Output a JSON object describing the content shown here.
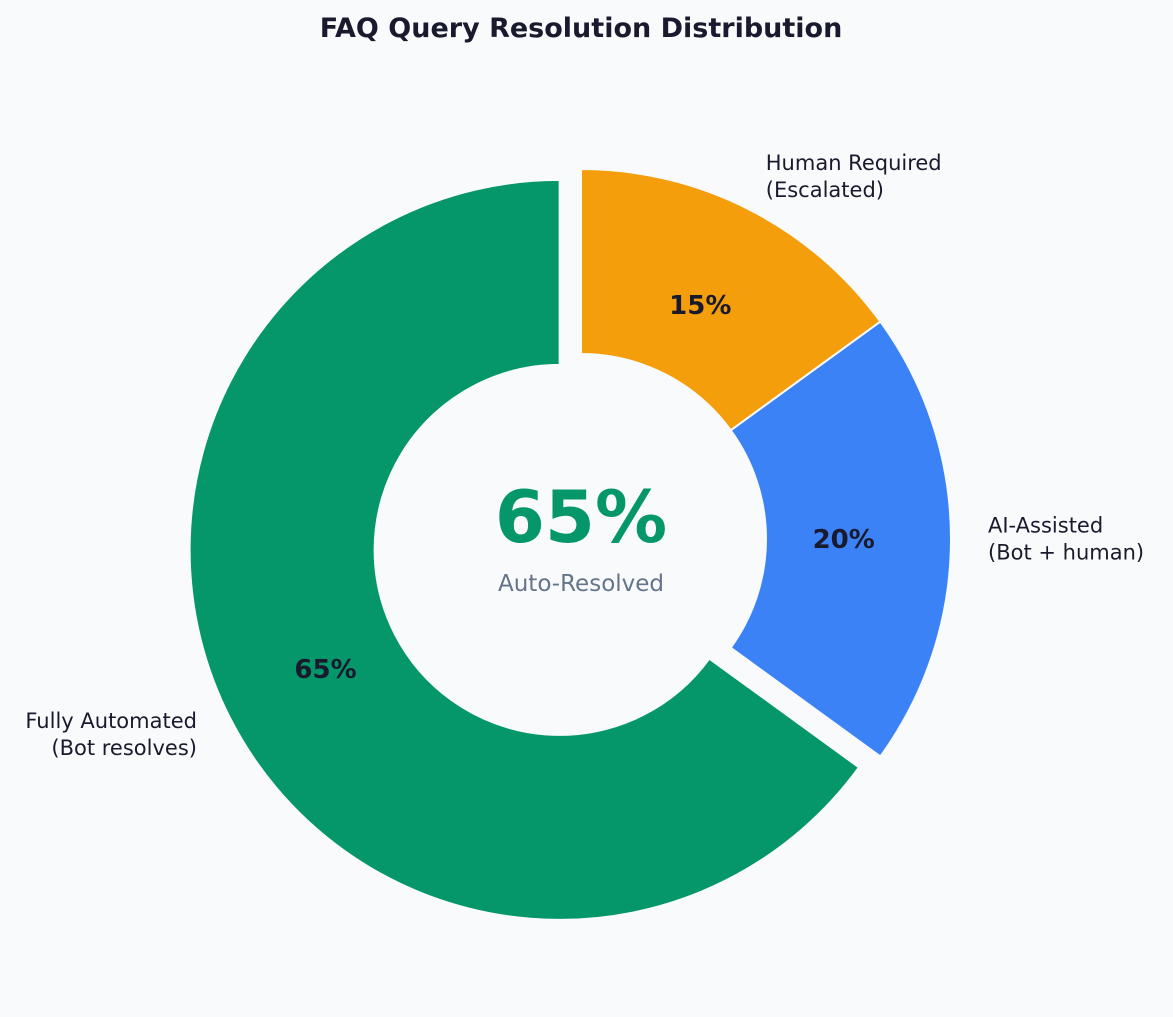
{
  "chart_data": {
    "type": "pie",
    "title": "FAQ Query Resolution Distribution",
    "donut": true,
    "slices": [
      {
        "label": "Fully Automated\n(Bot resolves)",
        "value": 65,
        "pct_label": "65%",
        "color": "#059669",
        "exploded": true
      },
      {
        "label": "AI-Assisted\n(Bot + human)",
        "value": 20,
        "pct_label": "20%",
        "color": "#3b82f6",
        "exploded": false
      },
      {
        "label": "Human Required\n(Escalated)",
        "value": 15,
        "pct_label": "15%",
        "color": "#f59e0b",
        "exploded": false
      }
    ],
    "center": {
      "value": "65%",
      "caption": "Auto-Resolved"
    },
    "start_angle": "top",
    "direction": "counterclockwise",
    "background": "#f8fafc"
  }
}
